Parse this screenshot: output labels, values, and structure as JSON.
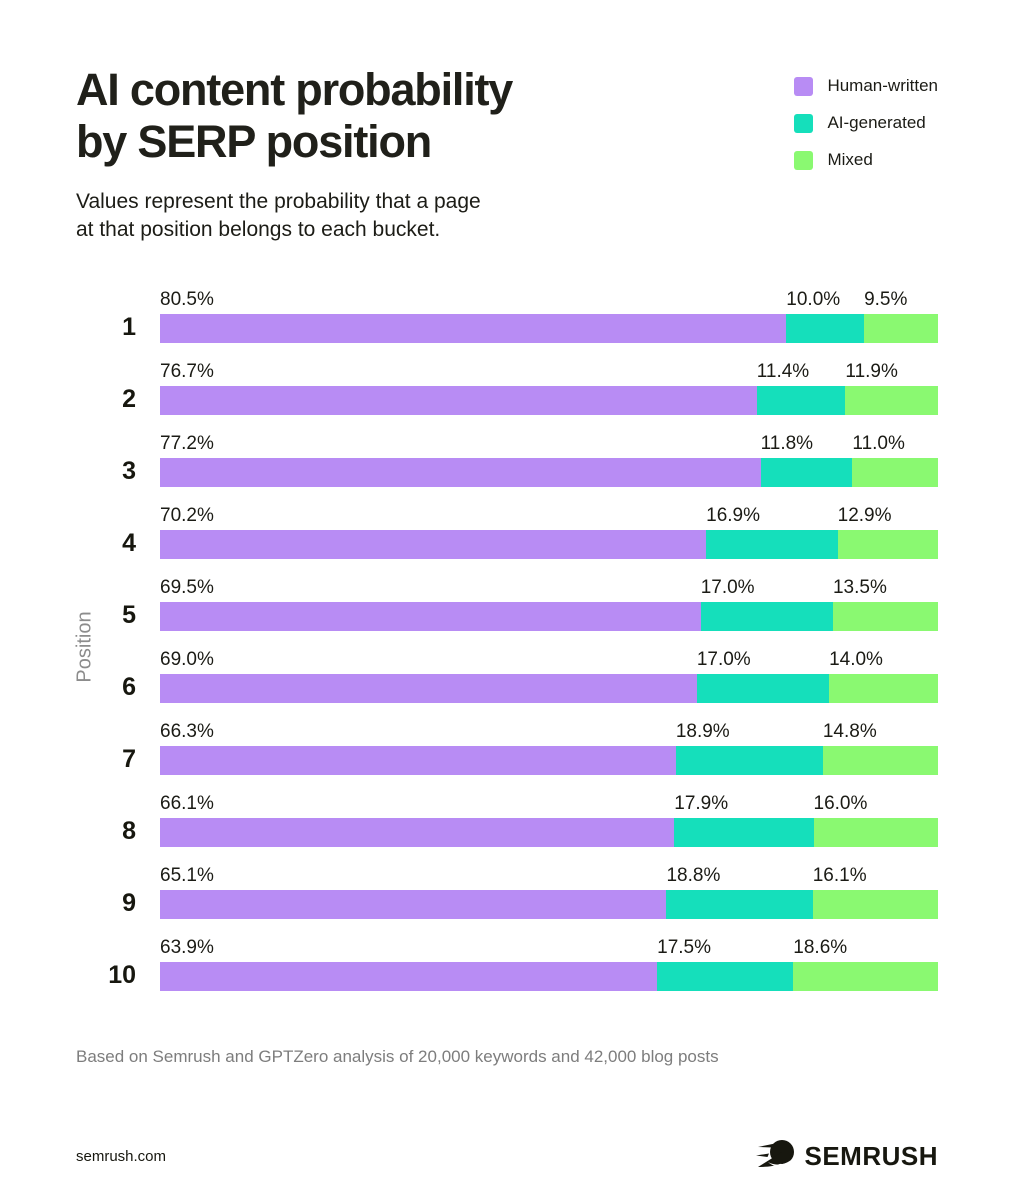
{
  "header": {
    "title_line1": "AI content probability",
    "title_line2": "by SERP position",
    "subtitle_line1": "Values represent the probability that a page",
    "subtitle_line2": "at that position belongs to each bucket."
  },
  "legend": {
    "items": [
      {
        "label": "Human-written",
        "color": "#B88CF4"
      },
      {
        "label": "AI-generated",
        "color": "#15DFBB"
      },
      {
        "label": "Mixed",
        "color": "#8AF971"
      }
    ]
  },
  "chart_data": {
    "type": "bar",
    "orientation": "horizontal",
    "stacked": true,
    "title": "AI content probability by SERP position",
    "ylabel": "Position",
    "xlabel": "",
    "xlim": [
      0,
      100
    ],
    "grid": false,
    "legend_position": "top-right",
    "categories": [
      "1",
      "2",
      "3",
      "4",
      "5",
      "6",
      "7",
      "8",
      "9",
      "10"
    ],
    "series": [
      {
        "name": "Human-written",
        "color": "#B88CF4",
        "values": [
          80.5,
          76.7,
          77.2,
          70.2,
          69.5,
          69.0,
          66.3,
          66.1,
          65.1,
          63.9
        ]
      },
      {
        "name": "AI-generated",
        "color": "#15DFBB",
        "values": [
          10.0,
          11.4,
          11.8,
          16.9,
          17.0,
          17.0,
          18.9,
          17.9,
          18.8,
          17.5
        ]
      },
      {
        "name": "Mixed",
        "color": "#8AF971",
        "values": [
          9.5,
          11.9,
          11.0,
          12.9,
          13.5,
          14.0,
          14.8,
          16.0,
          16.1,
          18.6
        ]
      }
    ]
  },
  "footer": {
    "note": "Based on Semrush and GPTZero analysis of 20,000 keywords and 42,000 blog posts",
    "site": "semrush.com",
    "brand": "SEMRUSH"
  },
  "colors": {
    "background": "#FFFFFF",
    "text_dark": "#20201A",
    "text_gray": "#7D7D7D",
    "axis_gray": "#8C8C8C"
  }
}
